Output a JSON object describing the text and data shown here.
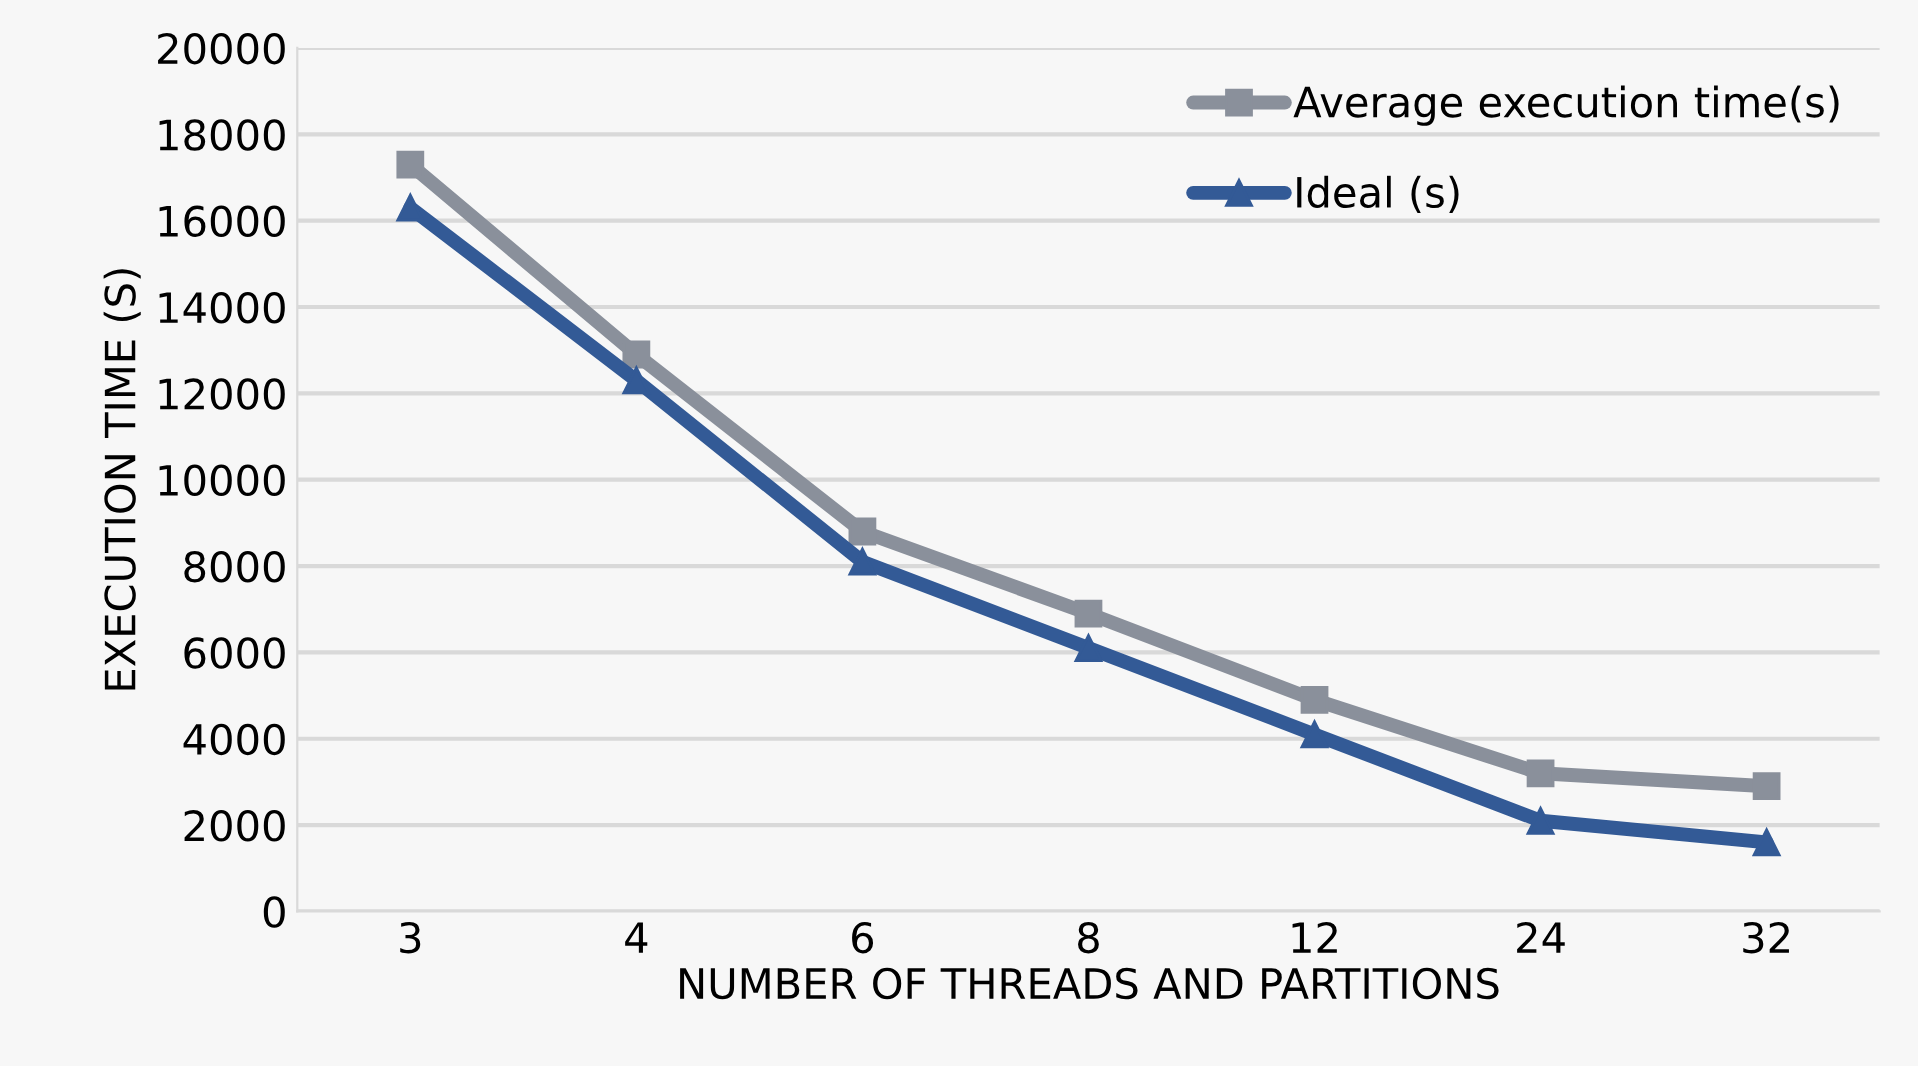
{
  "chart_data": {
    "type": "line",
    "xlabel": "NUMBER OF THREADS AND PARTITIONS",
    "ylabel": "EXECUTION TIME (S)",
    "categories": [
      "3",
      "4",
      "6",
      "8",
      "12",
      "24",
      "32"
    ],
    "series": [
      {
        "name": "Average execution time(s)",
        "color": "#8a909b",
        "marker": "square",
        "values": [
          17300,
          12900,
          8800,
          6900,
          4900,
          3200,
          2900
        ]
      },
      {
        "name": "Ideal (s)",
        "color": "#335a96",
        "marker": "triangle",
        "values": [
          16300,
          12300,
          8100,
          6100,
          4100,
          2100,
          1600
        ]
      }
    ],
    "ylim": [
      0,
      20000
    ],
    "yticks": [
      0,
      2000,
      4000,
      6000,
      8000,
      10000,
      12000,
      14000,
      16000,
      18000,
      20000
    ],
    "grid": "y",
    "legend": "top right",
    "line_style": "solid"
  }
}
